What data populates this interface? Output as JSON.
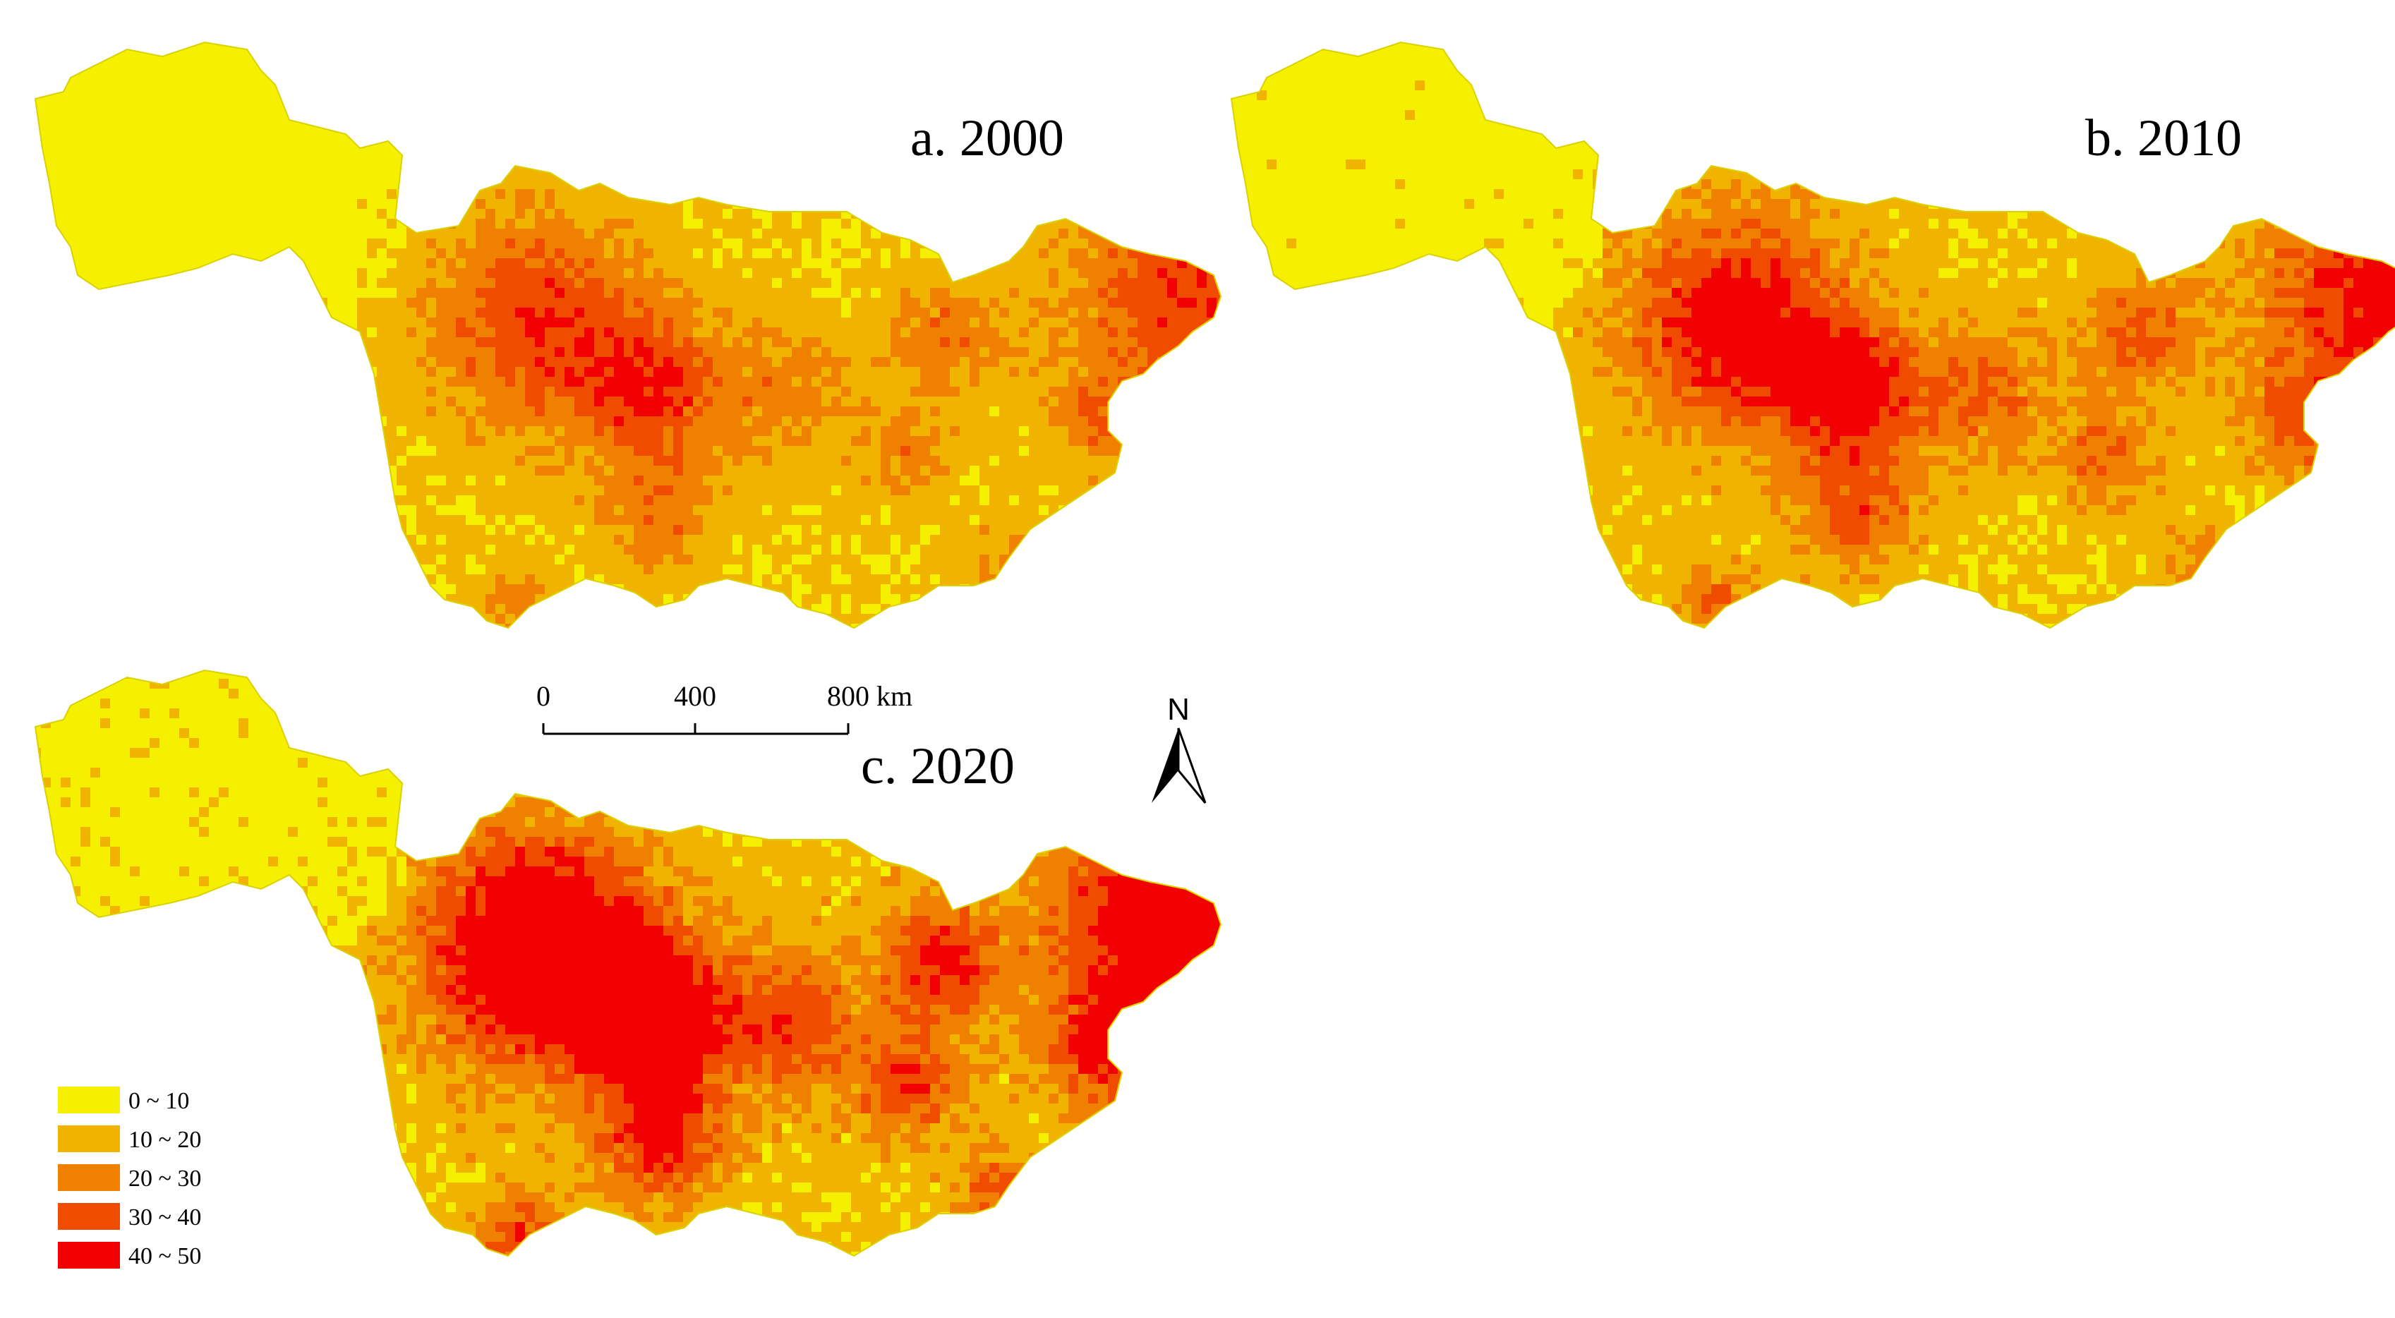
{
  "panels": [
    {
      "id": "a",
      "title": "a. 2000",
      "intensity": 0.35
    },
    {
      "id": "b",
      "title": "b. 2010",
      "intensity": 0.5
    },
    {
      "id": "c",
      "title": "c. 2020",
      "intensity": 0.75
    }
  ],
  "legend": {
    "items": [
      {
        "label": "0 ~ 10",
        "color": "#f5f000"
      },
      {
        "label": "10 ~ 20",
        "color": "#f0b400"
      },
      {
        "label": "20 ~ 30",
        "color": "#f08000"
      },
      {
        "label": "30 ~ 40",
        "color": "#f04c00"
      },
      {
        "label": "40 ~ 50",
        "color": "#f00000"
      }
    ]
  },
  "scalebar": {
    "ticks": [
      "0",
      "400",
      "800"
    ],
    "unit": "km"
  },
  "north_arrow": {
    "label": "N"
  }
}
